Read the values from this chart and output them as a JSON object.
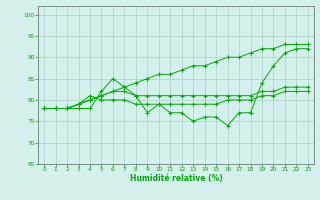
{
  "xlabel": "Humidité relative (%)",
  "xlim": [
    -0.5,
    23.5
  ],
  "ylim": [
    65,
    102
  ],
  "yticks": [
    65,
    70,
    75,
    80,
    85,
    90,
    95,
    100
  ],
  "xticks": [
    0,
    1,
    2,
    3,
    4,
    5,
    6,
    7,
    8,
    9,
    10,
    11,
    12,
    13,
    14,
    15,
    16,
    17,
    18,
    19,
    20,
    21,
    22,
    23
  ],
  "bg_color": "#d4f0ec",
  "grid_color": "#aacfc8",
  "line_color": "#00aa00",
  "series": [
    [
      78,
      78,
      78,
      78,
      78,
      82,
      85,
      83,
      81,
      77,
      79,
      77,
      77,
      75,
      76,
      76,
      74,
      77,
      77,
      84,
      88,
      91,
      92,
      92
    ],
    [
      78,
      78,
      78,
      79,
      81,
      80,
      80,
      80,
      79,
      79,
      79,
      79,
      79,
      79,
      79,
      79,
      80,
      80,
      80,
      81,
      81,
      82,
      82,
      82
    ],
    [
      78,
      78,
      78,
      79,
      80,
      81,
      82,
      83,
      84,
      85,
      86,
      86,
      87,
      88,
      88,
      89,
      90,
      90,
      91,
      92,
      92,
      93,
      93,
      93
    ],
    [
      78,
      78,
      78,
      79,
      80,
      81,
      82,
      82,
      81,
      81,
      81,
      81,
      81,
      81,
      81,
      81,
      81,
      81,
      81,
      82,
      82,
      83,
      83,
      83
    ]
  ],
  "figsize": [
    3.2,
    2.0
  ],
  "dpi": 100
}
